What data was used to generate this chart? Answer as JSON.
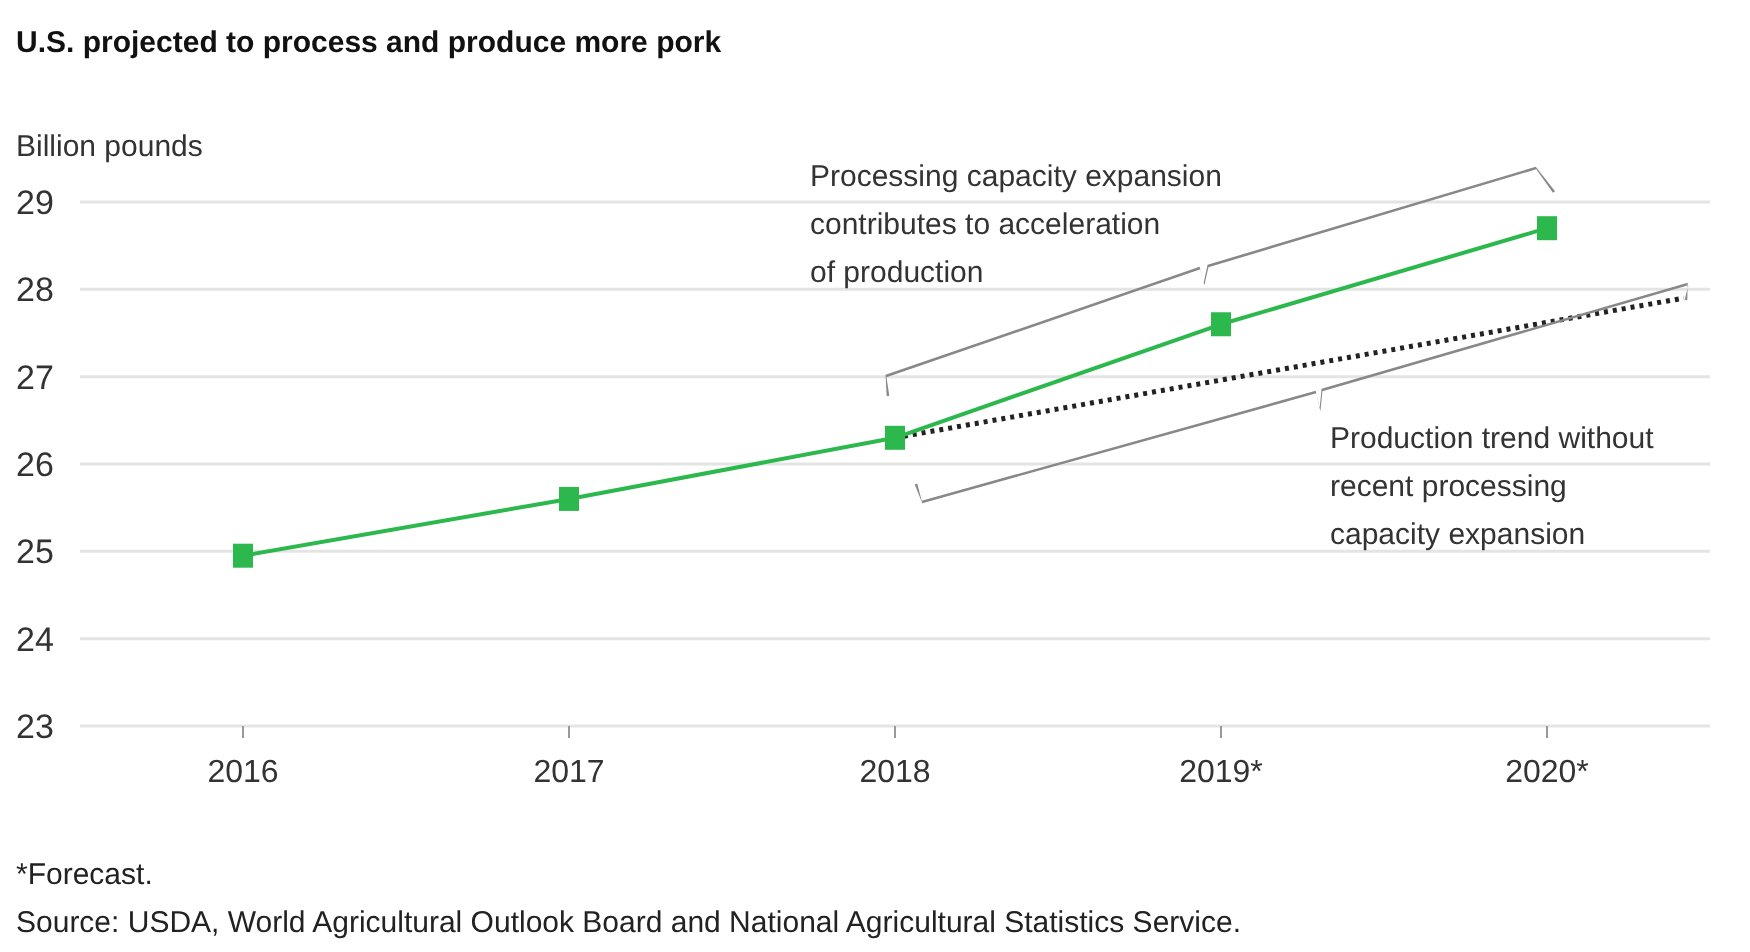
{
  "chart_data": {
    "type": "line",
    "title": "U.S. projected to process and produce more pork",
    "ylabel": "Billion pounds",
    "xlim": [
      2015.5,
      2020.5
    ],
    "xticks": [
      {
        "value": 2016,
        "label": "2016"
      },
      {
        "value": 2017,
        "label": "2017"
      },
      {
        "value": 2018,
        "label": "2018"
      },
      {
        "value": 2019,
        "label": "2019*"
      },
      {
        "value": 2020,
        "label": "2020*"
      }
    ],
    "ylim": [
      23,
      29
    ],
    "yticks": [
      23,
      24,
      25,
      26,
      27,
      28,
      29
    ],
    "grid": "y",
    "series": [
      {
        "x": [
          2018,
          2020.42
        ],
        "values": [
          26.3,
          27.9
        ],
        "color": "#222222",
        "line_style": "dotted",
        "marker": "none"
      },
      {
        "x": [
          2016,
          2017,
          2018,
          2019,
          2020
        ],
        "values": [
          24.95,
          25.6,
          26.3,
          27.6,
          28.7
        ],
        "color": "#2db84d",
        "line_style": "solid",
        "marker": "square"
      }
    ],
    "annotations": [
      "Processing capacity expansion contributes to acceleration of production",
      "Production trend without recent processing capacity expansion",
      "*Forecast.",
      "Source: USDA, World Agricultural Outlook Board and National Agricultural Statistics Service."
    ]
  }
}
